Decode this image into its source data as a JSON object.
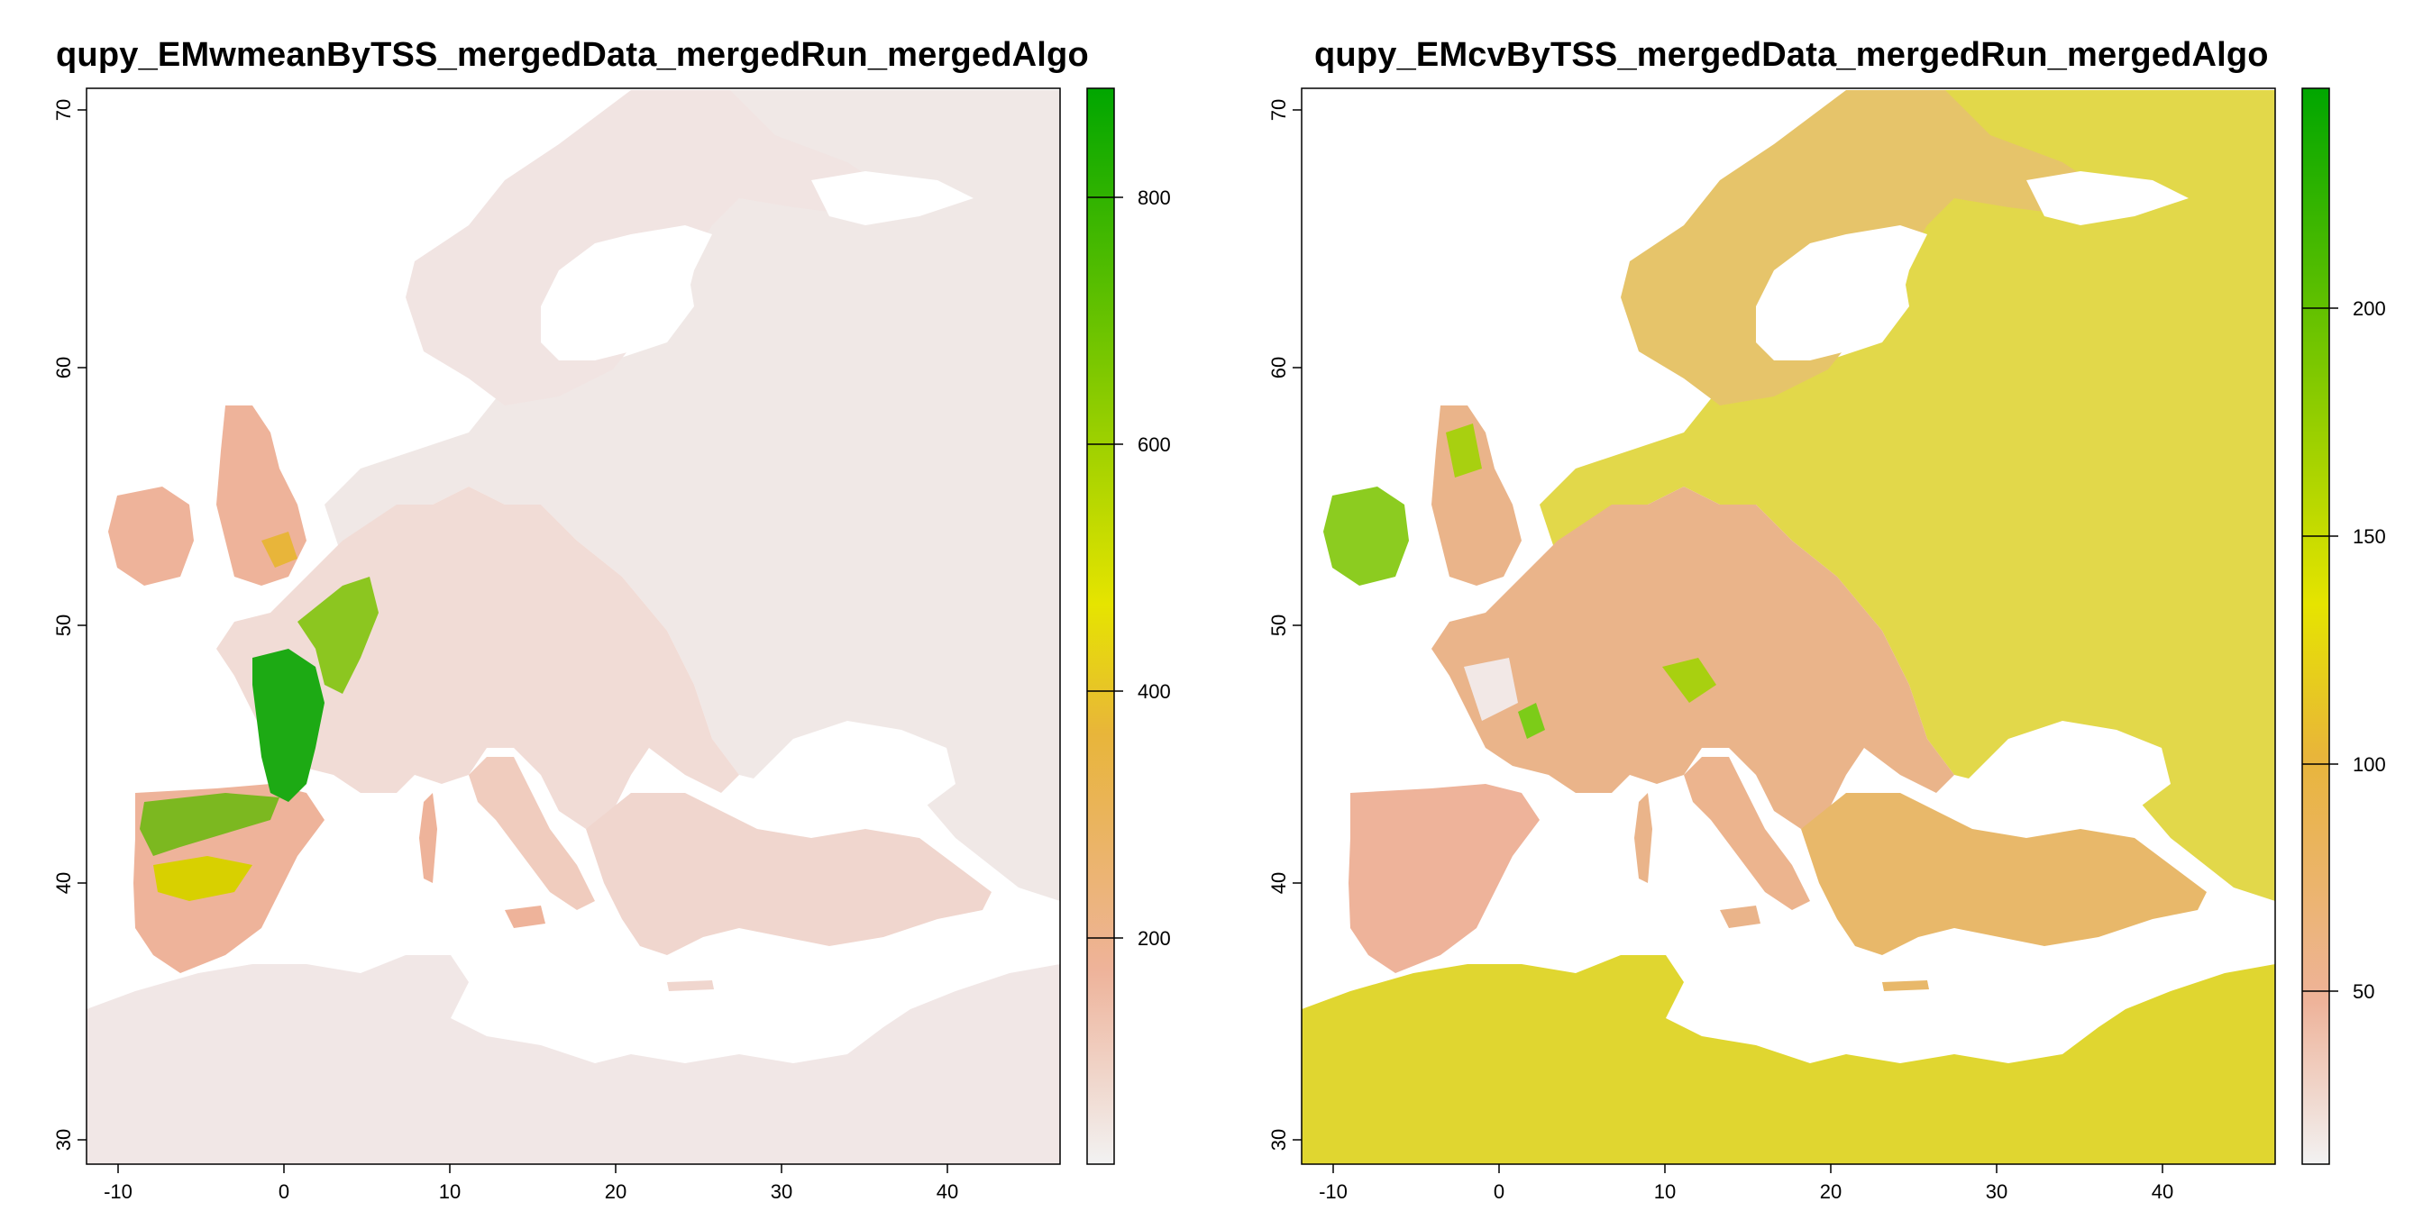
{
  "panels": [
    {
      "title": "qupy_EMwmeanByTSS_mergedData_mergedRun_mergedAlgo",
      "x_ticks": [
        "-10",
        "0",
        "10",
        "20",
        "30",
        "40"
      ],
      "y_ticks": [
        "30",
        "40",
        "50",
        "60",
        "70"
      ],
      "legend_ticks": [
        "200",
        "400",
        "600",
        "800"
      ],
      "colors": {
        "low": "#f2f2f2",
        "pink": "#eeb39a",
        "orange": "#e8b53a",
        "yellow": "#e6e400",
        "green": "#00a600"
      },
      "land_fill": "#f0e6e6",
      "hotspot_fill": "#1daa14"
    },
    {
      "title": "qupy_EMcvByTSS_mergedData_mergedRun_mergedAlgo",
      "x_ticks": [
        "-10",
        "0",
        "10",
        "20",
        "30",
        "40"
      ],
      "y_ticks": [
        "30",
        "40",
        "50",
        "60",
        "70"
      ],
      "legend_ticks": [
        "50",
        "100",
        "150",
        "200"
      ],
      "colors": {
        "low": "#f2f2f2",
        "pink": "#eeb39a",
        "orange": "#e8b53a",
        "yellow": "#e6e400",
        "green": "#00a600"
      },
      "land_fill": "#e2d44a",
      "hotspot_fill": "#7ccc18"
    }
  ]
}
